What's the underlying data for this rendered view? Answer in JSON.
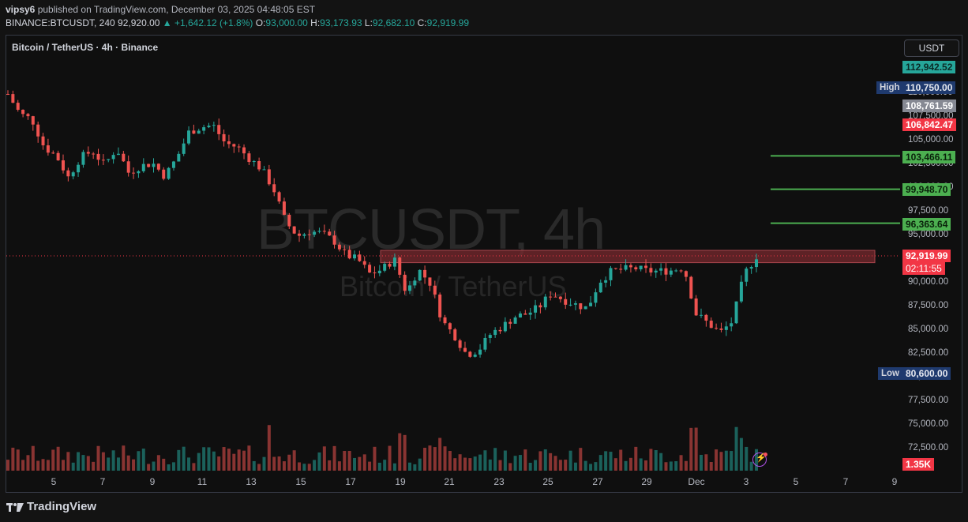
{
  "header": {
    "author": "vipsy6",
    "published_text": "published on TradingView.com, December 03, 2025 04:48:05 EST",
    "symbol_line": "BINANCE:BTCUSDT, 240",
    "last_price": "92,920.00",
    "change": "▲ +1,642.12 (+1.8%)",
    "open_label": "O:",
    "open": "93,000.00",
    "high_label": "H:",
    "high": "93,173.93",
    "low_label": "L:",
    "low": "92,682.10",
    "close_label": "C:",
    "close": "92,919.99"
  },
  "chart_legend": "Bitcoin / TetherUS · 4h · Binance",
  "currency_button": "USDT",
  "watermark": {
    "symbol": "BTCUSDT, 4h",
    "name": "Bitcoin / TetherUS"
  },
  "price_axis": {
    "ticks": [
      "112,500.00",
      "110,000.00",
      "107,500.00",
      "105,000.00",
      "102,500.00",
      "100,000.00",
      "97,500.00",
      "95,000.00",
      "92,500.00",
      "90,000.00",
      "87,500.00",
      "85,000.00",
      "82,500.00",
      "80,000.00",
      "77,500.00",
      "75,000.00",
      "72,500.00"
    ]
  },
  "price_tags": {
    "top": "112,942.52",
    "high_label": "High",
    "high": "110,750.00",
    "gray": "108,761.59",
    "red": "106,842.47",
    "green1": "103,466.11",
    "green2": "99,948.70",
    "green3": "96,363.64",
    "current": "92,919.99",
    "countdown": "02:11:55",
    "low_label": "Low",
    "low": "80,600.00",
    "volume": "1.35K"
  },
  "time_axis": [
    "5",
    "7",
    "9",
    "11",
    "13",
    "15",
    "17",
    "19",
    "21",
    "23",
    "25",
    "27",
    "29",
    "Dec",
    "3",
    "5",
    "7",
    "9"
  ],
  "colors": {
    "up": "#26a69a",
    "down": "#ef5350",
    "level_line": "#4caf50",
    "zone": "#7a2a2f",
    "bg": "#0f0f0f"
  },
  "footer": {
    "brand": "TradingView"
  },
  "chart_data": {
    "type": "candlestick",
    "symbol": "BTCUSDT",
    "interval": "4h",
    "ylim": [
      70000,
      115000
    ],
    "horizontal_levels": [
      103466.11,
      99948.7,
      96363.64
    ],
    "resistance_zone": [
      92200,
      93500
    ],
    "closes_approx": [
      110000,
      107900,
      107300,
      104400,
      103500,
      101200,
      103300,
      104000,
      102500,
      104300,
      101700,
      102400,
      102700,
      101300,
      103300,
      106000,
      106500,
      106700,
      104800,
      104400,
      103200,
      102100,
      100000,
      96500,
      95000,
      95500,
      95300,
      94500,
      93000,
      92500,
      91000,
      91500,
      92600,
      89000,
      91500,
      90000,
      86000,
      84500,
      82500,
      83000,
      84700,
      85500,
      86500,
      86800,
      87500,
      89000,
      88300,
      87800,
      87400,
      90200,
      91300,
      91500,
      91600,
      91300,
      91300,
      91400,
      91700,
      86800,
      85800,
      84800,
      86000,
      91000,
      92900
    ],
    "volume_last": "1.35K"
  }
}
